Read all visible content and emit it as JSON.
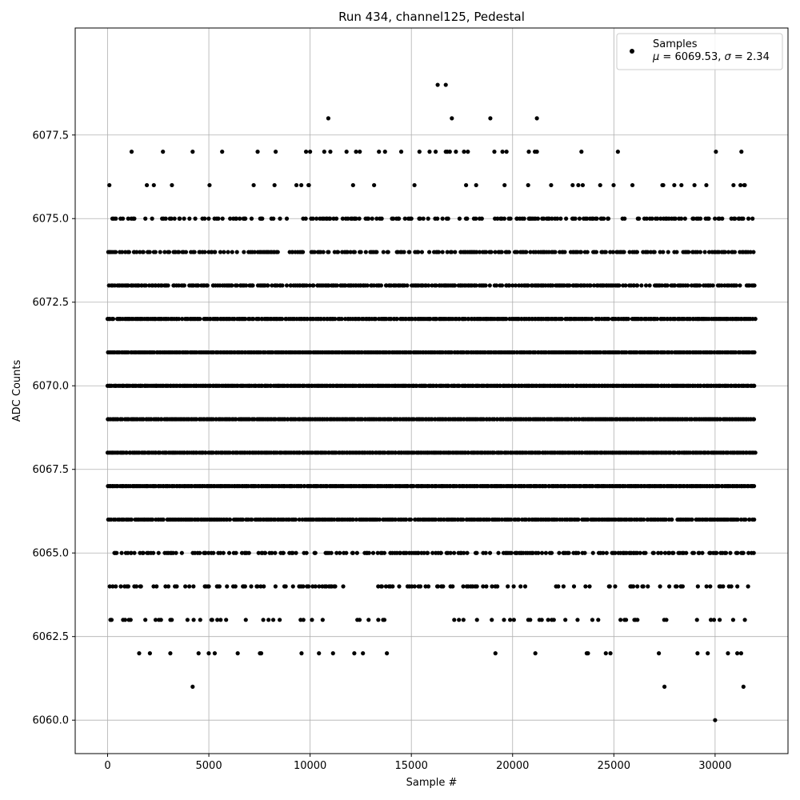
{
  "chart_data": {
    "type": "scatter",
    "title": "Run 434, channel125, Pedestal",
    "xlabel": "Sample #",
    "ylabel": "ADC Counts",
    "xlim": [
      -1600,
      33600
    ],
    "ylim": [
      6059.0,
      6080.7
    ],
    "xticks": [
      0,
      5000,
      10000,
      15000,
      20000,
      25000,
      30000
    ],
    "xtick_labels": [
      "0",
      "5000",
      "10000",
      "15000",
      "20000",
      "25000",
      "30000"
    ],
    "yticks": [
      6060.0,
      6062.5,
      6065.0,
      6067.5,
      6070.0,
      6072.5,
      6075.0,
      6077.5
    ],
    "ytick_labels": [
      "6060.0",
      "6062.5",
      "6065.0",
      "6067.5",
      "6070.0",
      "6072.5",
      "6075.0",
      "6077.5"
    ],
    "grid": true,
    "marker_color": "#000000",
    "legend": {
      "placement": "top-right",
      "series_label": "Samples",
      "stats_mu": "6069.53",
      "stats_sigma": "2.34"
    },
    "sample_range": [
      0,
      32000
    ],
    "levels": [
      {
        "y": 6060,
        "density": 0
      },
      {
        "y": 6061,
        "density": 0
      },
      {
        "y": 6062,
        "density": 0.05
      },
      {
        "y": 6063,
        "density": 0.12
      },
      {
        "y": 6064,
        "density": 0.3
      },
      {
        "y": 6065,
        "density": 0.55
      },
      {
        "y": 6066,
        "density": 0.88
      },
      {
        "y": 6067,
        "density": 1.0
      },
      {
        "y": 6068,
        "density": 1.0
      },
      {
        "y": 6069,
        "density": 1.0
      },
      {
        "y": 6070,
        "density": 1.0
      },
      {
        "y": 6071,
        "density": 1.0
      },
      {
        "y": 6072,
        "density": 0.95
      },
      {
        "y": 6073,
        "density": 0.8
      },
      {
        "y": 6074,
        "density": 0.55
      },
      {
        "y": 6075,
        "density": 0.45
      },
      {
        "y": 6076,
        "density": 0.07
      },
      {
        "y": 6077,
        "density": 0.02
      },
      {
        "y": 6078,
        "density": 0
      },
      {
        "y": 6079,
        "density": 0
      }
    ],
    "outliers": [
      {
        "x": 30000,
        "y": 6060
      },
      {
        "x": 4200,
        "y": 6061
      },
      {
        "x": 27500,
        "y": 6061
      },
      {
        "x": 31400,
        "y": 6061
      },
      {
        "x": 10900,
        "y": 6078
      },
      {
        "x": 17000,
        "y": 6078
      },
      {
        "x": 18900,
        "y": 6078
      },
      {
        "x": 21200,
        "y": 6078
      },
      {
        "x": 16300,
        "y": 6079
      },
      {
        "x": 16700,
        "y": 6079
      },
      {
        "x": 4200,
        "y": 6077
      },
      {
        "x": 8300,
        "y": 6077
      },
      {
        "x": 9800,
        "y": 6077
      },
      {
        "x": 10000,
        "y": 6077
      },
      {
        "x": 10700,
        "y": 6077
      },
      {
        "x": 11000,
        "y": 6077
      },
      {
        "x": 11800,
        "y": 6077
      },
      {
        "x": 13400,
        "y": 6077
      },
      {
        "x": 13700,
        "y": 6077
      },
      {
        "x": 14500,
        "y": 6077
      },
      {
        "x": 15400,
        "y": 6077
      },
      {
        "x": 15900,
        "y": 6077
      },
      {
        "x": 16200,
        "y": 6077
      },
      {
        "x": 16700,
        "y": 6077
      },
      {
        "x": 16900,
        "y": 6077
      },
      {
        "x": 17200,
        "y": 6077
      },
      {
        "x": 17600,
        "y": 6077
      },
      {
        "x": 19100,
        "y": 6077
      },
      {
        "x": 19500,
        "y": 6077
      },
      {
        "x": 19700,
        "y": 6077
      },
      {
        "x": 20800,
        "y": 6077
      },
      {
        "x": 21100,
        "y": 6077
      },
      {
        "x": 21200,
        "y": 6077
      },
      {
        "x": 23400,
        "y": 6077
      },
      {
        "x": 25200,
        "y": 6077
      },
      {
        "x": 31300,
        "y": 6077
      }
    ]
  }
}
